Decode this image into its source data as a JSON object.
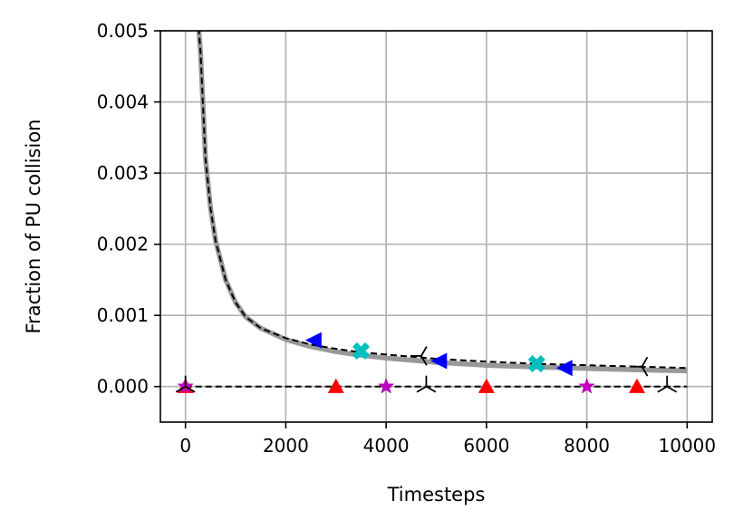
{
  "chart_data": {
    "type": "line",
    "title": "",
    "xlabel": "Timesteps",
    "ylabel": "Fraction of PU collision",
    "xlim": [
      -500,
      10500
    ],
    "ylim": [
      -0.0005,
      0.005
    ],
    "grid": true,
    "x_ticks": [
      0,
      2000,
      4000,
      6000,
      8000,
      10000
    ],
    "x_tick_labels": [
      "0",
      "2000",
      "4000",
      "6000",
      "8000",
      "10000"
    ],
    "y_ticks": [
      0,
      0.001,
      0.002,
      0.003,
      0.004,
      0.005
    ],
    "y_tick_labels": [
      "0.000",
      "0.001",
      "0.002",
      "0.003",
      "0.004",
      "0.005"
    ],
    "colors": {
      "gray_curve": "#999999",
      "dashed": "#000000",
      "blue": "#0000ff",
      "cyan": "#00bfbf",
      "red": "#ff0000",
      "magenta": "#bf00bf",
      "black": "#000000"
    },
    "series": [
      {
        "style": "gray-solid",
        "x": [
          200,
          300,
          400,
          500,
          600,
          800,
          1000,
          1200,
          1500,
          2000,
          2500,
          3000,
          3500,
          4000,
          5000,
          6000,
          7000,
          8000,
          9000,
          10000
        ],
        "y": [
          0.0056,
          0.0047,
          0.0032,
          0.0025,
          0.00205,
          0.0015,
          0.00118,
          0.00098,
          0.00082,
          0.00066,
          0.00056,
          0.00049,
          0.00044,
          0.0004,
          0.00034,
          0.0003,
          0.000275,
          0.000255,
          0.000235,
          0.00022
        ]
      },
      {
        "style": "black-dashed",
        "x": [
          200,
          300,
          400,
          500,
          600,
          800,
          1000,
          1200,
          1500,
          2000,
          2500,
          3000,
          3500,
          4000,
          5000,
          6000,
          7000,
          8000,
          9000,
          10000
        ],
        "y": [
          0.0056,
          0.0047,
          0.0032,
          0.0025,
          0.00205,
          0.0015,
          0.00118,
          0.00098,
          0.00082,
          0.00068,
          0.00059,
          0.00053,
          0.00048,
          0.00045,
          0.00039,
          0.00035,
          0.00032,
          0.0003,
          0.00028,
          0.00026
        ]
      },
      {
        "style": "black-dashed",
        "x": [
          0,
          10000
        ],
        "y": [
          0,
          0
        ]
      },
      {
        "marker": "triangle-left",
        "color": "#0000ff",
        "x": [
          2550,
          5050,
          7550
        ],
        "y": [
          0.00065,
          0.00036,
          0.00026
        ]
      },
      {
        "marker": "x-filled",
        "color": "#00bfbf",
        "x": [
          3500,
          7000
        ],
        "y": [
          0.0005,
          0.00032
        ]
      },
      {
        "marker": "tri-left",
        "color": "#000000",
        "x": [
          4700,
          9100
        ],
        "y": [
          0.00043,
          0.00028
        ]
      },
      {
        "marker": "triangle-up",
        "color": "#ff0000",
        "x": [
          0,
          3000,
          6000,
          9000
        ],
        "y": [
          0,
          0,
          0,
          0
        ]
      },
      {
        "marker": "star",
        "color": "#bf00bf",
        "x": [
          0,
          4000,
          8000
        ],
        "y": [
          0,
          0,
          0
        ]
      },
      {
        "marker": "tri-down",
        "color": "#000000",
        "x": [
          0,
          4800,
          9600
        ],
        "y": [
          0,
          0,
          0
        ]
      }
    ]
  }
}
